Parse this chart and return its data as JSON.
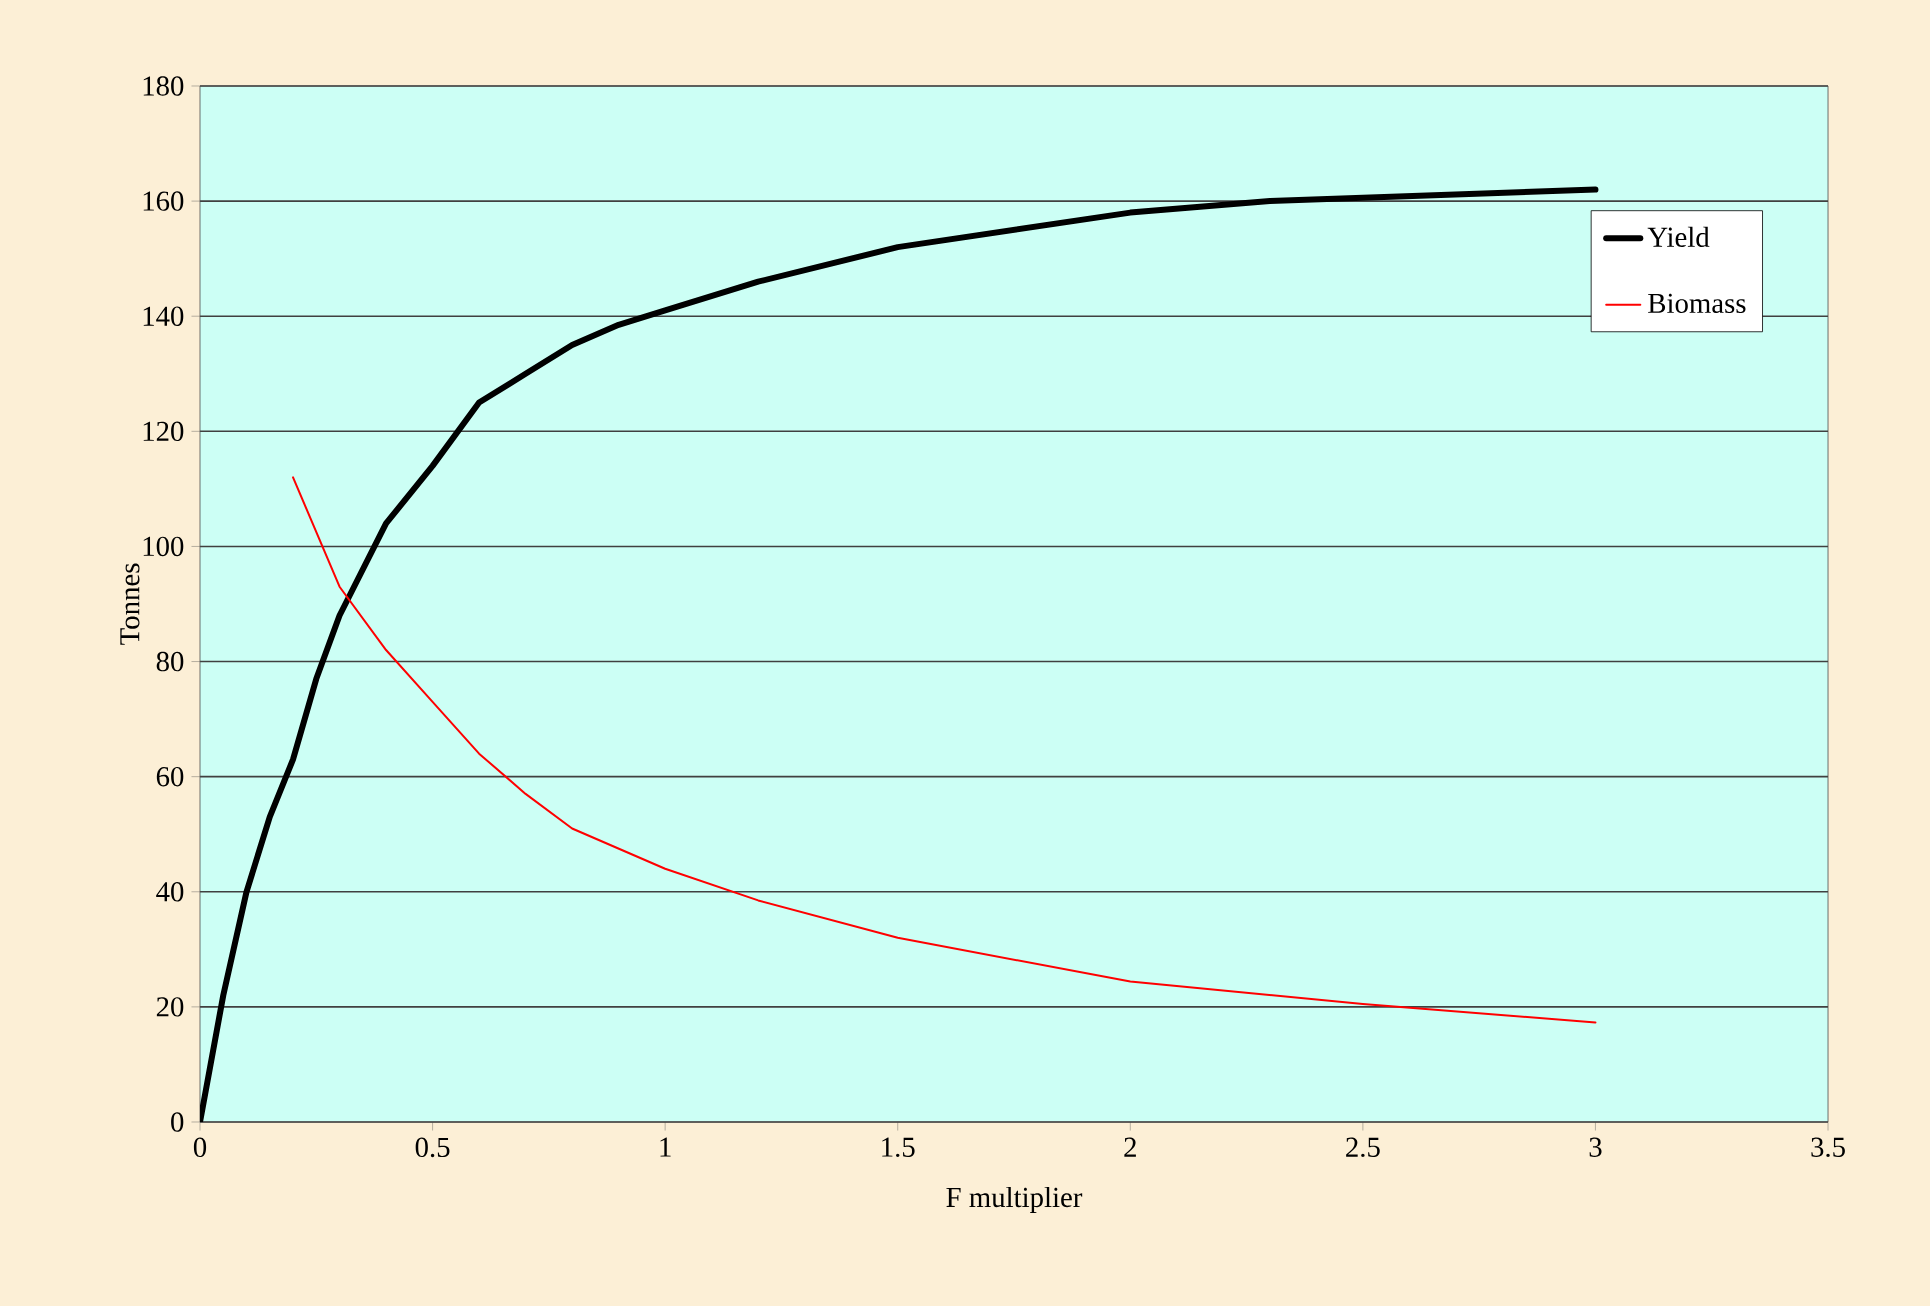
{
  "chart_data": {
    "type": "line",
    "xlabel": "F multiplier",
    "ylabel": "Tonnes",
    "xlim": [
      0,
      3.5
    ],
    "ylim": [
      0,
      180
    ],
    "xticks": [
      0,
      0.5,
      1,
      1.5,
      2,
      2.5,
      3,
      3.5
    ],
    "yticks": [
      0,
      20,
      40,
      60,
      80,
      100,
      120,
      140,
      160,
      180
    ],
    "grid": "y",
    "legend": "top right",
    "series": [
      {
        "name": "Yield",
        "color": "#000000",
        "x": [
          0,
          0.05,
          0.1,
          0.15,
          0.2,
          0.25,
          0.3,
          0.4,
          0.5,
          0.6,
          0.7,
          0.8,
          0.9,
          1.0,
          1.2,
          1.5,
          2.0,
          2.3,
          2.5,
          3.0
        ],
        "values": [
          0,
          22,
          40,
          53,
          63,
          77,
          88,
          104,
          114,
          125,
          130,
          135,
          138.5,
          141,
          146,
          152,
          158,
          160,
          160.6,
          162
        ]
      },
      {
        "name": "Biomass",
        "color": "#ff0000",
        "x": [
          0.2,
          0.3,
          0.4,
          0.5,
          0.6,
          0.7,
          0.8,
          1.0,
          1.2,
          1.5,
          2.0,
          2.5,
          3.0
        ],
        "values": [
          112,
          93,
          82,
          73,
          64,
          57,
          51,
          44,
          38.5,
          32,
          24.4,
          20.5,
          17.3
        ]
      }
    ]
  }
}
